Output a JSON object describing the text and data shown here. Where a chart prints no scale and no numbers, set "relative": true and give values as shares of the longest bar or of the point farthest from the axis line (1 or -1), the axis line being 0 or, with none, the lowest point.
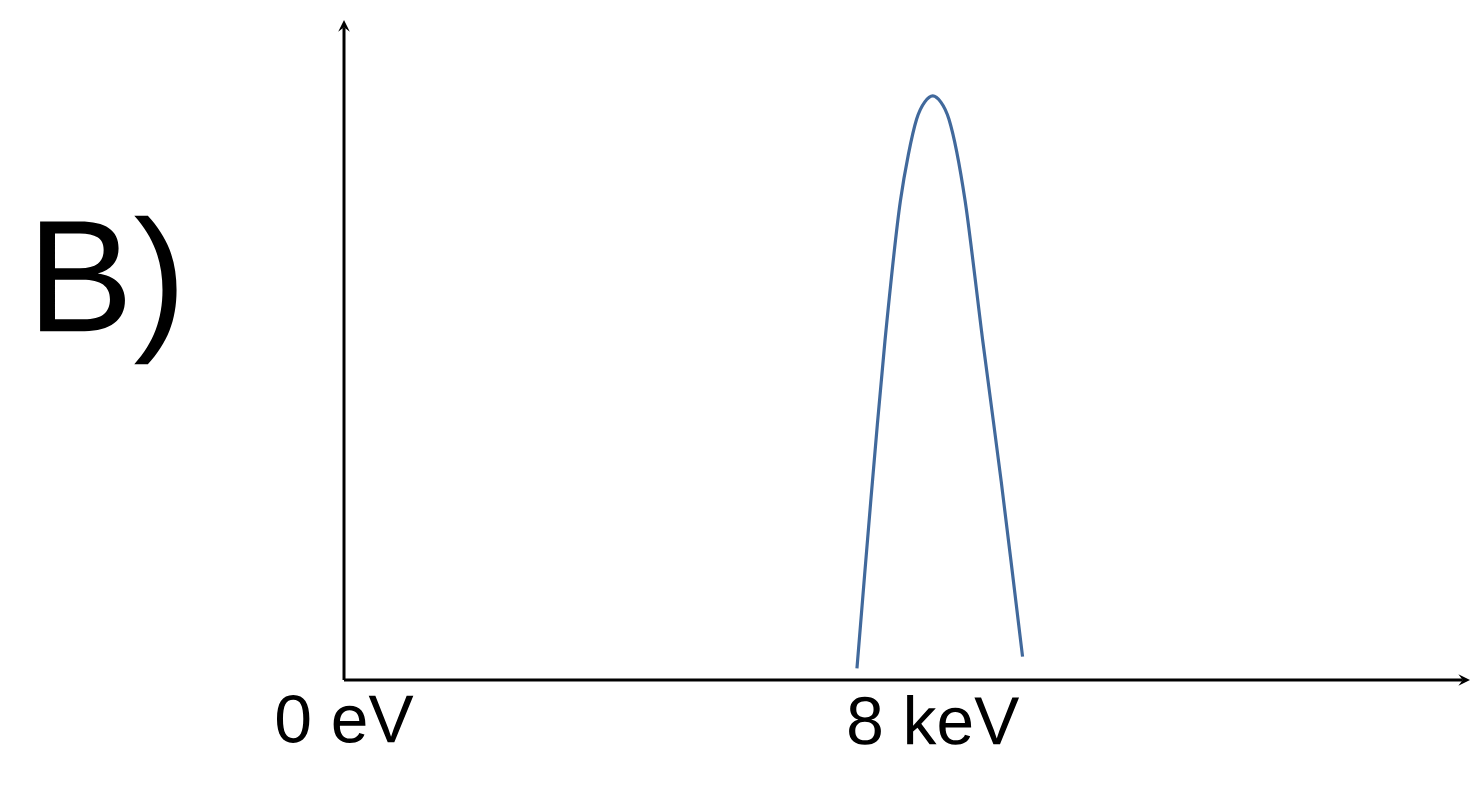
{
  "chart_data": {
    "type": "line",
    "relative": true,
    "annotations": [
      "B)"
    ],
    "xlim": [
      0,
      15.3
    ],
    "xticks": [
      {
        "value": 0,
        "label": "0 eV"
      },
      {
        "value": 8,
        "label": "8 keV"
      }
    ],
    "series": [
      {
        "color": "#41699c",
        "x": [
          6.97,
          7.16,
          7.35,
          7.56,
          7.78,
          8.0,
          8.22,
          8.44,
          8.68,
          8.93,
          9.22
        ],
        "values": [
          0.02,
          0.31,
          0.58,
          0.82,
          0.96,
          1,
          0.96,
          0.82,
          0.58,
          0.34,
          0.04
        ]
      }
    ]
  }
}
